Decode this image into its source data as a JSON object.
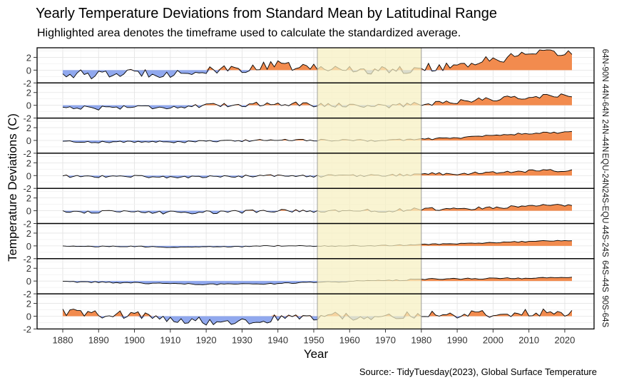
{
  "chart_data": {
    "type": "area",
    "title": "Yearly Temperature Deviations from Standard Mean by Latitudinal Range",
    "subtitle": "Highlighted area denotes the timeframe used to calculate the standardized average.",
    "caption": "Source:- TidyTuesday(2023), Global Surface Temperature",
    "xlabel": "Year",
    "ylabel": "Temperature Deviations (C)",
    "xlim": [
      1880,
      2022
    ],
    "ylim": [
      -2,
      3.5
    ],
    "x_ticks": [
      1880,
      1890,
      1900,
      1910,
      1920,
      1930,
      1940,
      1950,
      1960,
      1970,
      1980,
      1990,
      2000,
      2010,
      2020
    ],
    "y_ticks": [
      -2,
      0,
      2
    ],
    "highlight_range": [
      1951,
      1980
    ],
    "grid": true,
    "colors": {
      "positive": "#f28b4e",
      "negative": "#90a8ee",
      "highlight": "#f6f0c0",
      "line": "#000000",
      "grid": "#e6e6e6"
    },
    "panels": [
      {
        "label": "64N-90N",
        "anchors": [
          [
            1880,
            -0.5
          ],
          [
            1890,
            -0.8
          ],
          [
            1900,
            -0.4
          ],
          [
            1910,
            -0.5
          ],
          [
            1920,
            -0.2
          ],
          [
            1930,
            0.2
          ],
          [
            1940,
            0.8
          ],
          [
            1950,
            0.3
          ],
          [
            1960,
            0.2
          ],
          [
            1970,
            -0.1
          ],
          [
            1980,
            0.3
          ],
          [
            1990,
            0.8
          ],
          [
            2000,
            1.6
          ],
          [
            2010,
            2.4
          ],
          [
            2022,
            2.7
          ]
        ],
        "noise": 0.7
      },
      {
        "label": "44N-64N",
        "anchors": [
          [
            1880,
            -0.3
          ],
          [
            1890,
            -0.4
          ],
          [
            1900,
            -0.2
          ],
          [
            1910,
            -0.3
          ],
          [
            1920,
            -0.1
          ],
          [
            1930,
            0.1
          ],
          [
            1940,
            0.3
          ],
          [
            1950,
            0.1
          ],
          [
            1960,
            0.0
          ],
          [
            1970,
            -0.1
          ],
          [
            1980,
            0.2
          ],
          [
            1990,
            0.6
          ],
          [
            2000,
            1.0
          ],
          [
            2010,
            1.3
          ],
          [
            2022,
            1.6
          ]
        ],
        "noise": 0.35
      },
      {
        "label": "24N-44N",
        "anchors": [
          [
            1880,
            -0.15
          ],
          [
            1890,
            -0.25
          ],
          [
            1900,
            -0.2
          ],
          [
            1910,
            -0.25
          ],
          [
            1920,
            -0.15
          ],
          [
            1930,
            -0.05
          ],
          [
            1940,
            0.1
          ],
          [
            1950,
            0.05
          ],
          [
            1960,
            0.0
          ],
          [
            1970,
            0.0
          ],
          [
            1980,
            0.2
          ],
          [
            1990,
            0.4
          ],
          [
            2000,
            0.8
          ],
          [
            2010,
            1.1
          ],
          [
            2022,
            1.3
          ]
        ],
        "noise": 0.15
      },
      {
        "label": "EQU-24N",
        "anchors": [
          [
            1880,
            -0.1
          ],
          [
            1890,
            -0.15
          ],
          [
            1900,
            -0.1
          ],
          [
            1910,
            -0.25
          ],
          [
            1920,
            -0.2
          ],
          [
            1930,
            -0.1
          ],
          [
            1940,
            0.0
          ],
          [
            1950,
            -0.1
          ],
          [
            1960,
            0.0
          ],
          [
            1970,
            0.0
          ],
          [
            1980,
            0.25
          ],
          [
            1990,
            0.3
          ],
          [
            2000,
            0.5
          ],
          [
            2010,
            0.7
          ],
          [
            2022,
            0.85
          ]
        ],
        "noise": 0.2
      },
      {
        "label": "24S-EQU",
        "anchors": [
          [
            1880,
            -0.1
          ],
          [
            1890,
            -0.2
          ],
          [
            1900,
            -0.2
          ],
          [
            1910,
            -0.3
          ],
          [
            1920,
            -0.25
          ],
          [
            1930,
            -0.15
          ],
          [
            1940,
            0.0
          ],
          [
            1950,
            -0.1
          ],
          [
            1960,
            0.0
          ],
          [
            1970,
            0.0
          ],
          [
            1980,
            0.25
          ],
          [
            1990,
            0.3
          ],
          [
            2000,
            0.5
          ],
          [
            2010,
            0.7
          ],
          [
            2022,
            0.85
          ]
        ],
        "noise": 0.25
      },
      {
        "label": "44S-24S",
        "anchors": [
          [
            1880,
            -0.05
          ],
          [
            1890,
            -0.1
          ],
          [
            1900,
            -0.1
          ],
          [
            1910,
            -0.2
          ],
          [
            1920,
            -0.15
          ],
          [
            1930,
            -0.1
          ],
          [
            1940,
            0.0
          ],
          [
            1950,
            -0.05
          ],
          [
            1960,
            0.0
          ],
          [
            1970,
            0.05
          ],
          [
            1980,
            0.2
          ],
          [
            1990,
            0.35
          ],
          [
            2000,
            0.5
          ],
          [
            2010,
            0.7
          ],
          [
            2022,
            0.85
          ]
        ],
        "noise": 0.08
      },
      {
        "label": "64S-44S",
        "anchors": [
          [
            1880,
            -0.1
          ],
          [
            1890,
            -0.2
          ],
          [
            1900,
            -0.3
          ],
          [
            1910,
            -0.4
          ],
          [
            1920,
            -0.5
          ],
          [
            1930,
            -0.5
          ],
          [
            1940,
            -0.4
          ],
          [
            1950,
            -0.2
          ],
          [
            1960,
            -0.05
          ],
          [
            1970,
            0.05
          ],
          [
            1980,
            0.3
          ],
          [
            1990,
            0.35
          ],
          [
            2000,
            0.4
          ],
          [
            2010,
            0.45
          ],
          [
            2022,
            0.5
          ]
        ],
        "noise": 0.1
      },
      {
        "label": "90S-64S",
        "anchors": [
          [
            1880,
            0.6
          ],
          [
            1890,
            0.3
          ],
          [
            1900,
            0.2
          ],
          [
            1910,
            -0.4
          ],
          [
            1920,
            -0.8
          ],
          [
            1930,
            -1.0
          ],
          [
            1940,
            -0.3
          ],
          [
            1950,
            -0.4
          ],
          [
            1955,
            0.6
          ],
          [
            1960,
            -0.2
          ],
          [
            1970,
            0.1
          ],
          [
            1980,
            0.3
          ],
          [
            1990,
            0.2
          ],
          [
            2000,
            0.4
          ],
          [
            2010,
            0.5
          ],
          [
            2022,
            0.6
          ]
        ],
        "noise": 0.6
      }
    ]
  }
}
